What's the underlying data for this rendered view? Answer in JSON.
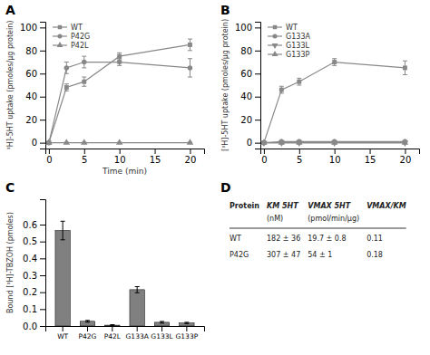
{
  "chart_data": [
    {
      "type": "line",
      "title": "A",
      "xlabel": "Time (min)",
      "ylabel": "³H]-5HT uptake (pmoles/μg protein)",
      "x": [
        0,
        2.5,
        5,
        10,
        20
      ],
      "xlim": [
        -0.5,
        22
      ],
      "xticks": [
        0,
        5,
        10,
        15,
        20
      ],
      "ylim": [
        -5,
        105
      ],
      "yticks": [
        0,
        20,
        40,
        60,
        80,
        100
      ],
      "grid": false,
      "legend": "upper left",
      "series": [
        {
          "name": "WT",
          "color": "#888888",
          "marker": "square",
          "values": [
            0,
            48,
            53,
            75,
            85
          ],
          "errors": [
            0,
            3,
            4,
            3,
            5
          ]
        },
        {
          "name": "P42G",
          "color": "#888888",
          "marker": "circle",
          "values": [
            0,
            65,
            70,
            70,
            65
          ],
          "errors": [
            0,
            5,
            5,
            3,
            8
          ]
        },
        {
          "name": "P42L",
          "color": "#888888",
          "marker": "triangle-up",
          "values": [
            0,
            0,
            0,
            0,
            0
          ],
          "errors": [
            0,
            0.5,
            0.5,
            0.5,
            0.5
          ]
        }
      ]
    },
    {
      "type": "line",
      "title": "B",
      "ylabel": "[³H]-5HT uptake (pmoles/μg protein)",
      "x": [
        0,
        2.5,
        5,
        10,
        20
      ],
      "xlim": [
        -0.5,
        22
      ],
      "xticks": [
        0,
        5,
        10,
        15,
        20
      ],
      "ylim": [
        -5,
        105
      ],
      "yticks": [
        0,
        20,
        40,
        60,
        80,
        100
      ],
      "grid": false,
      "legend": "upper left",
      "series": [
        {
          "name": "WT",
          "color": "#888888",
          "marker": "square",
          "values": [
            0,
            46,
            53,
            70,
            65
          ],
          "errors": [
            0,
            3,
            3,
            3,
            6
          ]
        },
        {
          "name": "G133A",
          "color": "#888888",
          "marker": "circle",
          "values": [
            0,
            1,
            1,
            1,
            1
          ],
          "errors": [
            0,
            0.5,
            1,
            0.5,
            0.5
          ]
        },
        {
          "name": "G133L",
          "color": "#888888",
          "marker": "triangle-down",
          "values": [
            0,
            0,
            0,
            0,
            0
          ],
          "errors": [
            0,
            0.5,
            0.5,
            0.5,
            0.5
          ]
        },
        {
          "name": "G133P",
          "color": "#888888",
          "marker": "triangle-up",
          "values": [
            0,
            0,
            0,
            0,
            0
          ],
          "errors": [
            0,
            0.5,
            0.5,
            0.5,
            0.5
          ]
        }
      ]
    },
    {
      "type": "bar",
      "title": "C",
      "ylabel": "Bound [³H]-TBZOH (pmoles)",
      "categories": [
        "WT",
        "P42G",
        "P42L",
        "G133A",
        "G133L",
        "G133P"
      ],
      "values": [
        0.565,
        0.028,
        0.005,
        0.215,
        0.022,
        0.018
      ],
      "errors": [
        0.055,
        0.005,
        0.003,
        0.018,
        0.005,
        0.004
      ],
      "color": "#808080",
      "ylim": [
        0,
        0.75
      ],
      "yticks": [
        {
          "value": 0,
          "label": "0.0"
        },
        0.1,
        0.2,
        0.3,
        0.4,
        0.5,
        0.6
      ],
      "grid": false
    },
    {
      "type": "table",
      "title": "D",
      "columns": [
        "Protein",
        "KM 5HT",
        "VMAX 5HT",
        "VMAX/KM"
      ],
      "units": [
        null,
        "(nM)",
        "(pmol/min/μg)",
        null
      ],
      "rows": [
        [
          "WT",
          "182 ± 36",
          "19.7 ± 0.8",
          "0.11"
        ],
        [
          "P42G",
          "307 ± 47",
          "54 ± 1",
          "0.18"
        ]
      ]
    }
  ]
}
